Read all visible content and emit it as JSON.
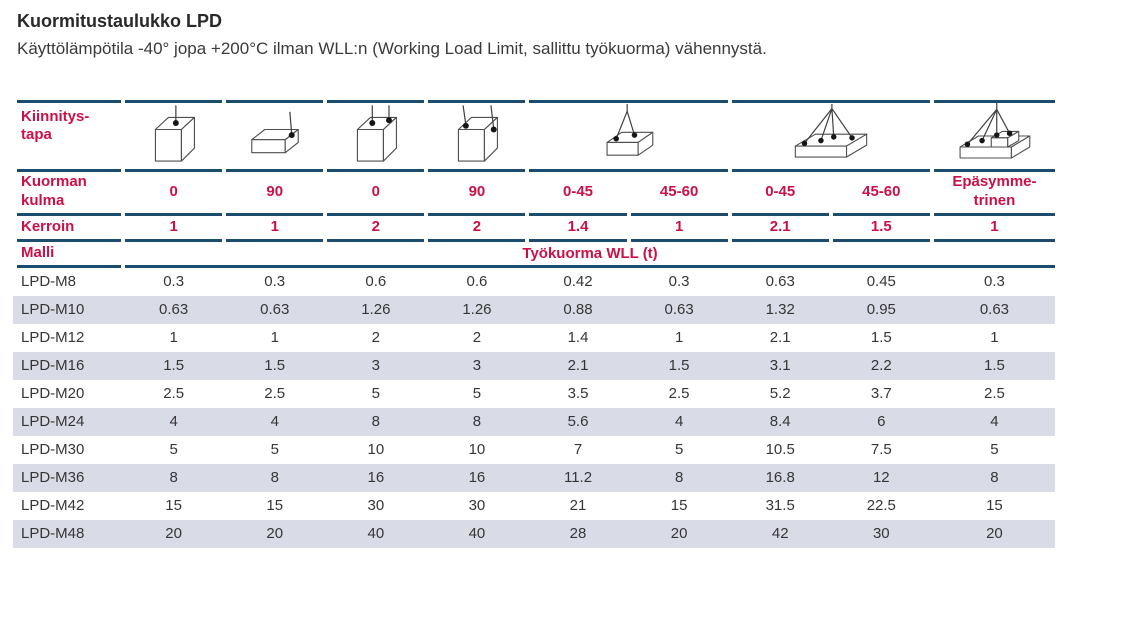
{
  "document": {
    "title": "Kuormitustaulukko LPD",
    "subtitle": "Käyttölämpötila -40° jopa +200°C ilman WLL:n (Working Load Limit, sallittu työkuorma) vähennystä."
  },
  "colors": {
    "accent_red": "#cb1047",
    "rule_navy": "#1c4d6f",
    "row_shade": "#d9dbe6"
  },
  "table": {
    "row_labels": {
      "attachment": "Kiinnitys-\ntapa",
      "load_angle": "Kuorman\nkulma",
      "factor": "Kerroin",
      "model": "Malli"
    },
    "wll_header": "Työkuorma WLL (t)",
    "icon_names": [
      "lift-0deg-single-point-icon",
      "lift-90deg-side-point-icon",
      "lift-0deg-two-points-icon",
      "lift-90deg-two-points-icon",
      "sling-2-leg-icon",
      "sling-4-leg-icon",
      "sling-4-leg-asymmetric-icon"
    ],
    "load_angles": [
      "0",
      "90",
      "0",
      "90",
      "0-45",
      "45-60",
      "0-45",
      "45-60",
      "Epäsymme-\ntrinen"
    ],
    "factors": [
      "1",
      "1",
      "2",
      "2",
      "1.4",
      "1",
      "2.1",
      "1.5",
      "1"
    ],
    "rows": [
      {
        "model": "LPD-M8",
        "values": [
          "0.3",
          "0.3",
          "0.6",
          "0.6",
          "0.42",
          "0.3",
          "0.63",
          "0.45",
          "0.3"
        ]
      },
      {
        "model": "LPD-M10",
        "values": [
          "0.63",
          "0.63",
          "1.26",
          "1.26",
          "0.88",
          "0.63",
          "1.32",
          "0.95",
          "0.63"
        ]
      },
      {
        "model": "LPD-M12",
        "values": [
          "1",
          "1",
          "2",
          "2",
          "1.4",
          "1",
          "2.1",
          "1.5",
          "1"
        ]
      },
      {
        "model": "LPD-M16",
        "values": [
          "1.5",
          "1.5",
          "3",
          "3",
          "2.1",
          "1.5",
          "3.1",
          "2.2",
          "1.5"
        ]
      },
      {
        "model": "LPD-M20",
        "values": [
          "2.5",
          "2.5",
          "5",
          "5",
          "3.5",
          "2.5",
          "5.2",
          "3.7",
          "2.5"
        ]
      },
      {
        "model": "LPD-M24",
        "values": [
          "4",
          "4",
          "8",
          "8",
          "5.6",
          "4",
          "8.4",
          "6",
          "4"
        ]
      },
      {
        "model": "LPD-M30",
        "values": [
          "5",
          "5",
          "10",
          "10",
          "7",
          "5",
          "10.5",
          "7.5",
          "5"
        ]
      },
      {
        "model": "LPD-M36",
        "values": [
          "8",
          "8",
          "16",
          "16",
          "11.2",
          "8",
          "16.8",
          "12",
          "8"
        ]
      },
      {
        "model": "LPD-M42",
        "values": [
          "15",
          "15",
          "30",
          "30",
          "21",
          "15",
          "31.5",
          "22.5",
          "15"
        ]
      },
      {
        "model": "LPD-M48",
        "values": [
          "20",
          "20",
          "40",
          "40",
          "28",
          "20",
          "42",
          "30",
          "20"
        ]
      }
    ]
  }
}
